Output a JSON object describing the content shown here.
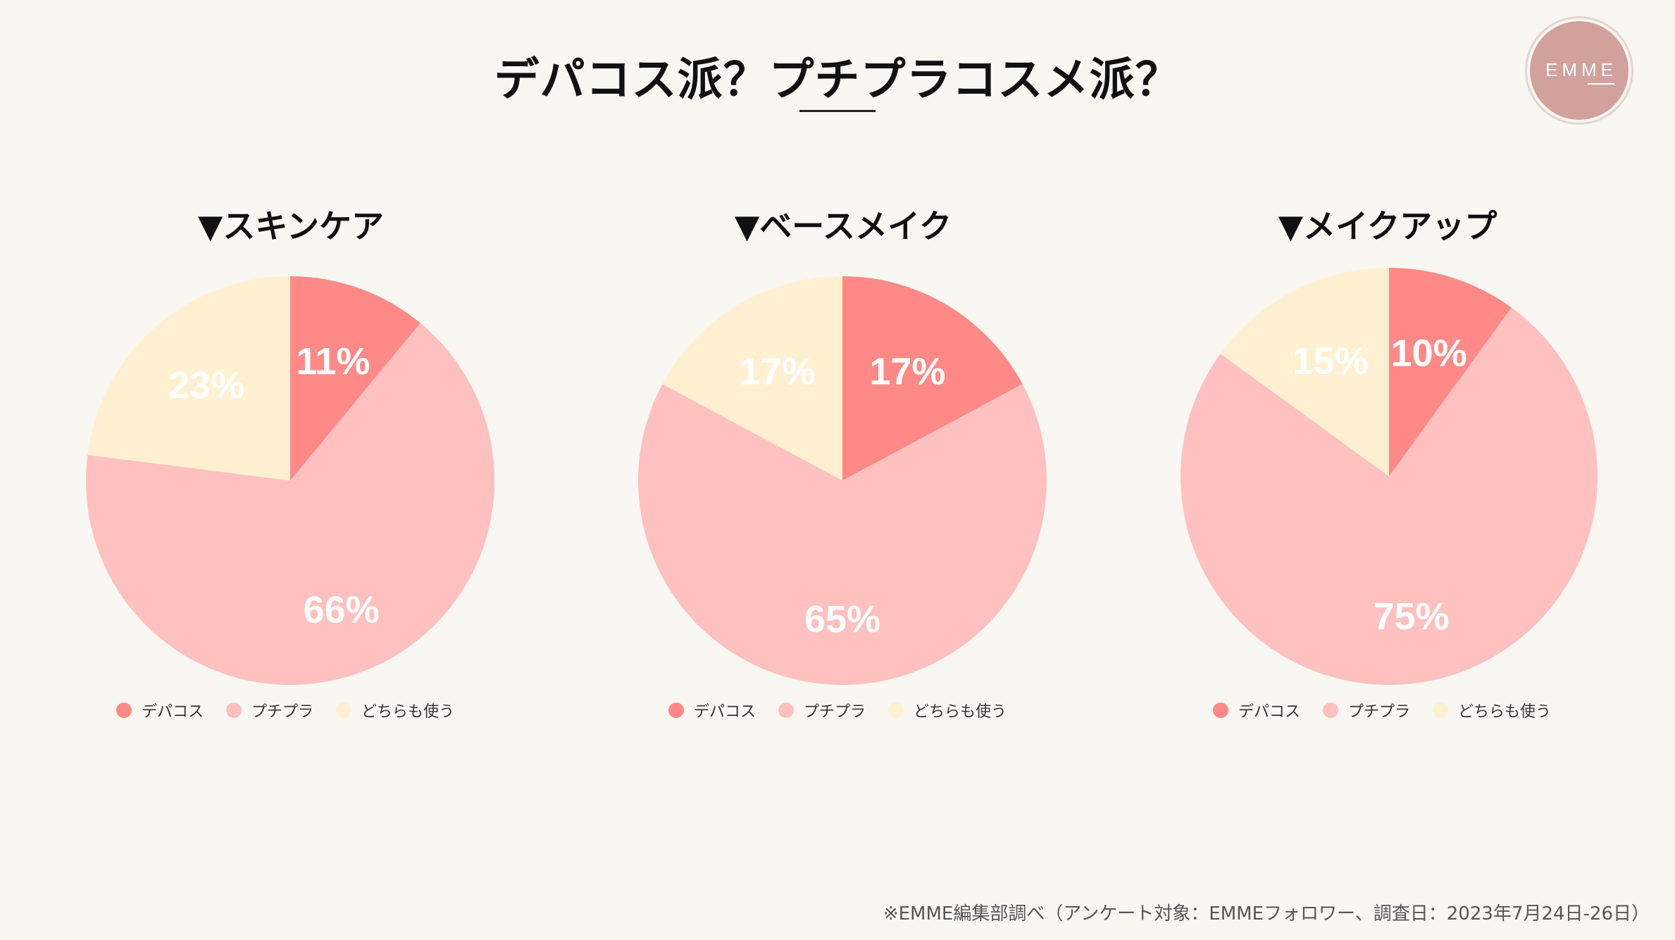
{
  "header": {
    "title": "デパコス派？プチプラコスメ派？"
  },
  "logo": {
    "text": "EMME"
  },
  "legend_labels": [
    "デパコス",
    "プチプラ",
    "どちらも使う"
  ],
  "colors": {
    "depacos": "#fe8986",
    "puchipura": "#ffc0c0",
    "dochira": "#fff0d1",
    "label": "#ffffff"
  },
  "footnote": "※EMME編集部調べ（アンケート対象：EMMEフォロワー、調査日：2023年7月24日-26日）",
  "chart_data": [
    {
      "type": "pie",
      "title": "▼スキンケア",
      "categories": [
        "デパコス",
        "プチプラ",
        "どちらも使う"
      ],
      "values": [
        11,
        66,
        23
      ],
      "labels": [
        "11%",
        "66%",
        "23%"
      ],
      "legend": "bottom"
    },
    {
      "type": "pie",
      "title": "▼ベースメイク",
      "categories": [
        "デパコス",
        "プチプラ",
        "どちらも使う"
      ],
      "values": [
        17,
        65,
        17
      ],
      "labels": [
        "17%",
        "65%",
        "17%"
      ],
      "legend": "bottom"
    },
    {
      "type": "pie",
      "title": "▼メイクアップ",
      "categories": [
        "デパコス",
        "プチプラ",
        "どちらも使う"
      ],
      "values": [
        10,
        75,
        15
      ],
      "labels": [
        "10%",
        "75%",
        "15%"
      ],
      "legend": "bottom"
    }
  ]
}
